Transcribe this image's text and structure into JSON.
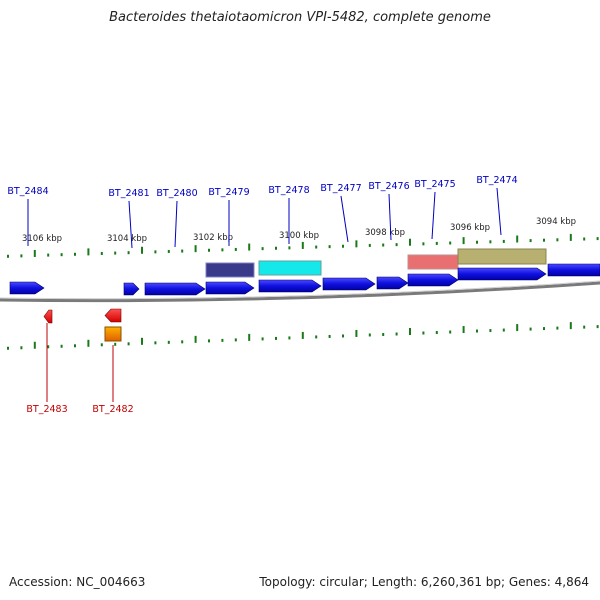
{
  "header": {
    "title": "Bacteroides thetaiotaomicron VPI-5482, complete genome"
  },
  "footer": {
    "accession": "Accession: NC_004663",
    "summary": "Topology: circular; Length: 6,260,361 bp; Genes: 4,864"
  },
  "colors": {
    "forward_gene": "#1515e0",
    "reverse_gene": "#ee0000",
    "forward_label": "#0000c0",
    "reverse_label": "#c00000",
    "tick": "#1a7a1a",
    "backbone": "#808080"
  },
  "scale_labels": [
    "3106 kbp",
    "3104 kbp",
    "3102 kbp",
    "3100 kbp",
    "3098 kbp",
    "3096 kbp",
    "3094 kbp"
  ],
  "forward_genes": [
    "BT_2484",
    "BT_2481",
    "BT_2480",
    "BT_2479",
    "BT_2478",
    "BT_2477",
    "BT_2476",
    "BT_2475",
    "BT_2474"
  ],
  "reverse_genes": [
    "BT_2483",
    "BT_2482"
  ]
}
